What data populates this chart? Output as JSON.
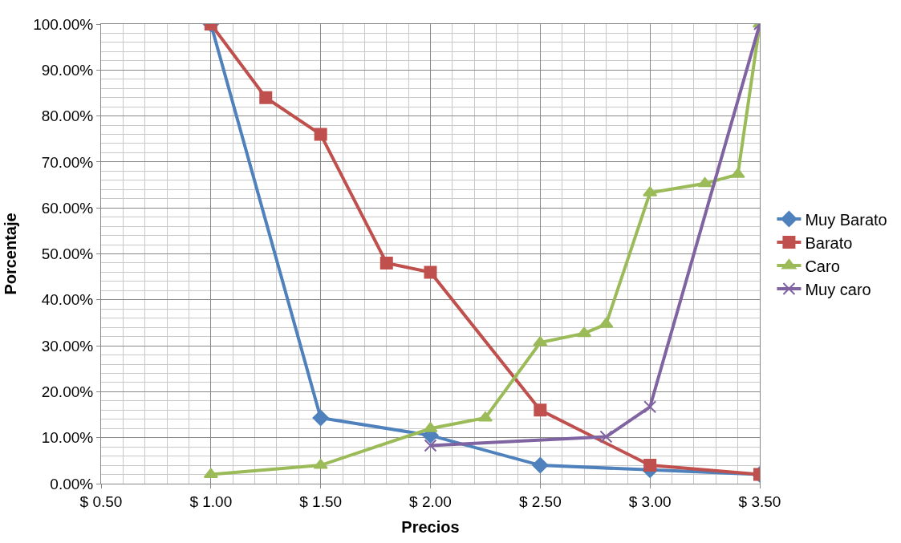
{
  "chart_data": {
    "type": "line",
    "xlabel": "Precios",
    "ylabel": "Porcentaje",
    "xlim": [
      0.5,
      3.5
    ],
    "ylim": [
      0,
      100
    ],
    "xticks": [
      {
        "value": 0.5,
        "label": "$ 0.50"
      },
      {
        "value": 1.0,
        "label": "$ 1.00"
      },
      {
        "value": 1.5,
        "label": "$ 1.50"
      },
      {
        "value": 2.0,
        "label": "$ 2.00"
      },
      {
        "value": 2.5,
        "label": "$ 2.50"
      },
      {
        "value": 3.0,
        "label": "$ 3.00"
      },
      {
        "value": 3.5,
        "label": "$ 3.50"
      }
    ],
    "yticks": [
      {
        "value": 0,
        "label": "0.00%"
      },
      {
        "value": 10,
        "label": "10.00%"
      },
      {
        "value": 20,
        "label": "20.00%"
      },
      {
        "value": 30,
        "label": "30.00%"
      },
      {
        "value": 40,
        "label": "40.00%"
      },
      {
        "value": 50,
        "label": "50.00%"
      },
      {
        "value": 60,
        "label": "60.00%"
      },
      {
        "value": 70,
        "label": "70.00%"
      },
      {
        "value": 80,
        "label": "80.00%"
      },
      {
        "value": 90,
        "label": "90.00%"
      },
      {
        "value": 100,
        "label": "100.00%"
      }
    ],
    "grid": true,
    "legend": "right",
    "series": [
      {
        "name": "Muy Barato",
        "color": "#4f81bd",
        "marker": "diamond",
        "x": [
          1,
          1.5,
          2,
          2.5,
          3,
          3.5
        ],
        "values": [
          100,
          14.3,
          10.5,
          4,
          3,
          2
        ]
      },
      {
        "name": "Barato",
        "color": "#c0504d",
        "marker": "square",
        "x": [
          1,
          1.25,
          1.5,
          1.8,
          2,
          2.5,
          3,
          3.5
        ],
        "values": [
          100,
          84,
          76,
          48,
          46,
          16,
          4,
          2
        ]
      },
      {
        "name": "Caro",
        "color": "#9bbb59",
        "marker": "triangle",
        "x": [
          1,
          1.5,
          2,
          2.25,
          2.5,
          2.7,
          2.8,
          3,
          3.25,
          3.4,
          3.5
        ],
        "values": [
          2,
          4,
          12,
          14.3,
          30.7,
          32.7,
          34.7,
          63.3,
          65.3,
          67.3,
          100
        ]
      },
      {
        "name": "Muy caro",
        "color": "#8064a2",
        "marker": "cross",
        "x": [
          2,
          2.8,
          3,
          3.5
        ],
        "values": [
          8.3,
          10.2,
          16.7,
          100
        ]
      }
    ]
  }
}
